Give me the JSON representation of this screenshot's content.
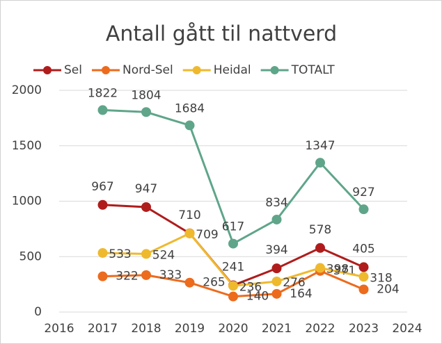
{
  "chart_data": {
    "type": "line",
    "title": "Antall gått til nattverd",
    "x": [
      2017,
      2018,
      2019,
      2020,
      2021,
      2022,
      2023
    ],
    "series": [
      {
        "name": "Sel",
        "color": "#b01c1c",
        "values": [
          967,
          947,
          710,
          241,
          394,
          578,
          405
        ]
      },
      {
        "name": "Nord-Sel",
        "color": "#ec6b1d",
        "values": [
          322,
          333,
          265,
          140,
          164,
          371,
          204
        ]
      },
      {
        "name": "Heidal",
        "color": "#efb92e",
        "values": [
          533,
          524,
          709,
          236,
          276,
          398,
          318
        ]
      },
      {
        "name": "TOTALT",
        "color": "#5fa58a",
        "values": [
          1822,
          1804,
          1684,
          617,
          834,
          1347,
          927
        ]
      }
    ],
    "xlim": [
      2016,
      2024
    ],
    "xticks": [
      2016,
      2017,
      2018,
      2019,
      2020,
      2021,
      2022,
      2023,
      2024
    ],
    "ylim": [
      0,
      2000
    ],
    "yticks": [
      0,
      500,
      1000,
      1500,
      2000
    ],
    "grid": true,
    "legend": "top"
  }
}
